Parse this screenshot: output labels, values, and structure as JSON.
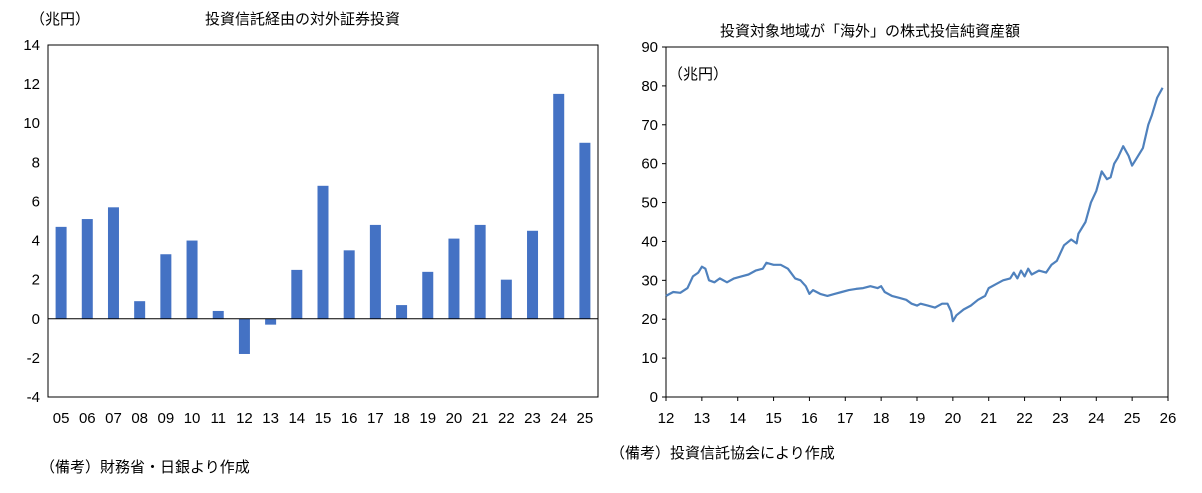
{
  "chart_data": [
    {
      "type": "bar",
      "title": "投資信託経由の対外証券投資",
      "unit_label": "（兆円）",
      "note": "（備考）財務省・日銀より作成",
      "categories": [
        "05",
        "06",
        "07",
        "08",
        "09",
        "10",
        "11",
        "12",
        "13",
        "14",
        "15",
        "16",
        "17",
        "18",
        "19",
        "20",
        "21",
        "22",
        "23",
        "24",
        "25"
      ],
      "values": [
        4.7,
        5.1,
        5.7,
        0.9,
        3.3,
        4.0,
        0.4,
        -1.8,
        -0.3,
        2.5,
        6.8,
        3.5,
        4.8,
        0.7,
        2.4,
        4.1,
        4.8,
        2.0,
        4.5,
        11.5,
        9.0
      ],
      "ylim": [
        -4,
        14
      ],
      "yticks": [
        "-4",
        "-2",
        "0",
        "2",
        "4",
        "6",
        "8",
        "10",
        "12",
        "14"
      ],
      "color": "#4472C4",
      "grid": false
    },
    {
      "type": "line",
      "title": "投資対象地域が「海外」の株式投信純資産額",
      "unit_label": "（兆円）",
      "note": "（備考）投資信託協会により作成",
      "xticks": [
        "12",
        "13",
        "14",
        "15",
        "16",
        "17",
        "18",
        "19",
        "20",
        "21",
        "22",
        "23",
        "24",
        "25",
        "26"
      ],
      "yticks": [
        "0",
        "10",
        "20",
        "30",
        "40",
        "50",
        "60",
        "70",
        "80",
        "90"
      ],
      "ylim": [
        0,
        90
      ],
      "color": "#4F81BD",
      "grid": false,
      "points": [
        [
          2012.0,
          26.0
        ],
        [
          2012.2,
          27.0
        ],
        [
          2012.4,
          26.8
        ],
        [
          2012.6,
          28.0
        ],
        [
          2012.75,
          31.0
        ],
        [
          2012.9,
          32.0
        ],
        [
          2013.0,
          33.5
        ],
        [
          2013.1,
          33.0
        ],
        [
          2013.2,
          30.0
        ],
        [
          2013.35,
          29.5
        ],
        [
          2013.5,
          30.5
        ],
        [
          2013.7,
          29.5
        ],
        [
          2013.9,
          30.5
        ],
        [
          2014.1,
          31.0
        ],
        [
          2014.3,
          31.5
        ],
        [
          2014.5,
          32.5
        ],
        [
          2014.7,
          33.0
        ],
        [
          2014.8,
          34.5
        ],
        [
          2015.0,
          34.0
        ],
        [
          2015.2,
          34.0
        ],
        [
          2015.4,
          33.0
        ],
        [
          2015.6,
          30.5
        ],
        [
          2015.75,
          30.0
        ],
        [
          2015.9,
          28.5
        ],
        [
          2016.0,
          26.5
        ],
        [
          2016.1,
          27.5
        ],
        [
          2016.3,
          26.5
        ],
        [
          2016.5,
          26.0
        ],
        [
          2016.7,
          26.5
        ],
        [
          2016.9,
          27.0
        ],
        [
          2017.1,
          27.5
        ],
        [
          2017.3,
          27.8
        ],
        [
          2017.5,
          28.0
        ],
        [
          2017.7,
          28.5
        ],
        [
          2017.9,
          28.0
        ],
        [
          2018.0,
          28.5
        ],
        [
          2018.1,
          27.0
        ],
        [
          2018.3,
          26.0
        ],
        [
          2018.5,
          25.5
        ],
        [
          2018.7,
          25.0
        ],
        [
          2018.85,
          24.0
        ],
        [
          2019.0,
          23.5
        ],
        [
          2019.1,
          24.0
        ],
        [
          2019.3,
          23.5
        ],
        [
          2019.5,
          23.0
        ],
        [
          2019.7,
          24.0
        ],
        [
          2019.85,
          24.0
        ],
        [
          2019.95,
          22.0
        ],
        [
          2020.0,
          19.5
        ],
        [
          2020.1,
          21.0
        ],
        [
          2020.3,
          22.5
        ],
        [
          2020.5,
          23.5
        ],
        [
          2020.7,
          25.0
        ],
        [
          2020.9,
          26.0
        ],
        [
          2021.0,
          28.0
        ],
        [
          2021.2,
          29.0
        ],
        [
          2021.4,
          30.0
        ],
        [
          2021.6,
          30.5
        ],
        [
          2021.7,
          32.0
        ],
        [
          2021.8,
          30.5
        ],
        [
          2021.9,
          32.5
        ],
        [
          2022.0,
          31.0
        ],
        [
          2022.1,
          33.0
        ],
        [
          2022.2,
          31.5
        ],
        [
          2022.4,
          32.5
        ],
        [
          2022.6,
          32.0
        ],
        [
          2022.75,
          34.0
        ],
        [
          2022.9,
          35.0
        ],
        [
          2023.0,
          37.0
        ],
        [
          2023.1,
          39.0
        ],
        [
          2023.3,
          40.5
        ],
        [
          2023.45,
          39.5
        ],
        [
          2023.5,
          42.0
        ],
        [
          2023.7,
          45.0
        ],
        [
          2023.85,
          50.0
        ],
        [
          2024.0,
          53.0
        ],
        [
          2024.15,
          58.0
        ],
        [
          2024.3,
          56.0
        ],
        [
          2024.4,
          56.5
        ],
        [
          2024.5,
          60.0
        ],
        [
          2024.6,
          61.5
        ],
        [
          2024.75,
          64.5
        ],
        [
          2024.9,
          62.0
        ],
        [
          2025.0,
          59.5
        ],
        [
          2025.1,
          61.0
        ],
        [
          2025.3,
          64.0
        ],
        [
          2025.45,
          70.0
        ],
        [
          2025.55,
          72.5
        ],
        [
          2025.7,
          77.0
        ],
        [
          2025.85,
          79.5
        ]
      ]
    }
  ]
}
